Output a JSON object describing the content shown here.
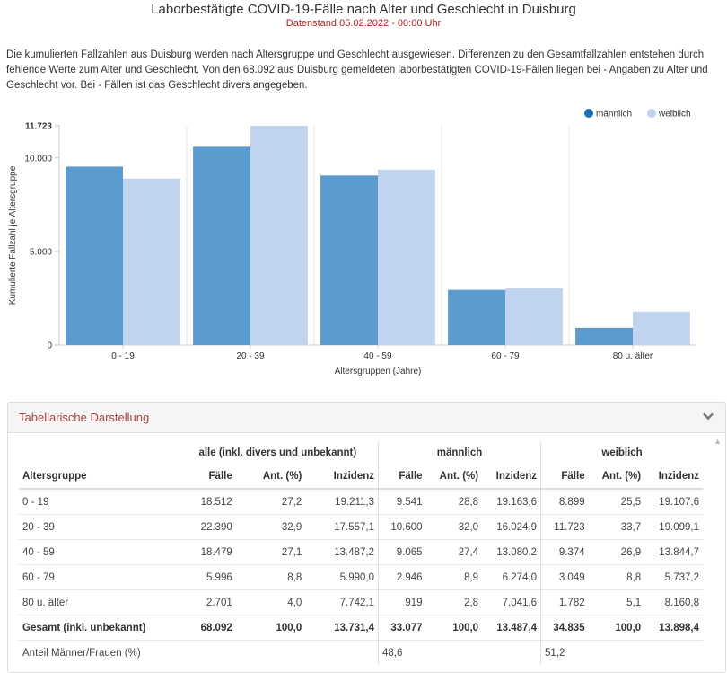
{
  "header": {
    "title": "Laborbestätigte COVID-19-Fälle nach Alter und Geschlecht in Duisburg",
    "subtitle": "Datenstand 05.02.2022 - 00:00 Uhr",
    "description": "Die kumulierten Fallzahlen aus Duisburg werden nach Altersgruppe und Geschlecht ausgewiesen. Differenzen zu den Gesamtfallzahlen entstehen durch fehlende Werte zum Alter und Geschlecht. Von den 68.092 aus Duisburg gemeldeten laborbestätigten COVID-19-Fällen liegen bei - Angaben zu Alter und Geschlecht vor. Bei - Fällen ist das Geschlecht divers angegeben."
  },
  "colors": {
    "male": "#5b9bd0",
    "female": "#c0d4ef",
    "legend_male": "#1f6fb4"
  },
  "chart_data": {
    "type": "bar",
    "categories": [
      "0 - 19",
      "20 - 39",
      "40 - 59",
      "60 - 79",
      "80 u. älter"
    ],
    "series": [
      {
        "name": "männlich",
        "values": [
          9541,
          10600,
          9065,
          2946,
          919
        ]
      },
      {
        "name": "weiblich",
        "values": [
          8899,
          11723,
          9374,
          3049,
          1782
        ]
      }
    ],
    "xlabel": "Altersgruppen (Jahre)",
    "ylabel": "Kumulierte Fallzahl je Altersgruppe",
    "ylim": [
      0,
      11723
    ],
    "yticks": [
      0,
      5000,
      10000,
      11723
    ],
    "ytick_labels": [
      "0",
      "5.000",
      "10.000",
      "11.723"
    ],
    "legend": "top-right",
    "grid": "vertical"
  },
  "table": {
    "panel_title": "Tabellarische Darstellung",
    "groups": [
      "alle (inkl. divers und unbekannt)",
      "männlich",
      "weiblich"
    ],
    "columns": [
      "Altersgruppe",
      "Fälle",
      "Ant. (%)",
      "Inzidenz",
      "Fälle",
      "Ant. (%)",
      "Inzidenz",
      "Fälle",
      "Ant. (%)",
      "Inzidenz"
    ],
    "rows": [
      [
        "0 - 19",
        "18.512",
        "27,2",
        "19.211,3",
        "9.541",
        "28,8",
        "19.163,6",
        "8.899",
        "25,5",
        "19.107,6"
      ],
      [
        "20 - 39",
        "22.390",
        "32,9",
        "17.557,1",
        "10.600",
        "32,0",
        "16.024,9",
        "11.723",
        "33,7",
        "19.099,1"
      ],
      [
        "40 - 59",
        "18.479",
        "27,1",
        "13.487,2",
        "9.065",
        "27,4",
        "13.080,2",
        "9.374",
        "26,9",
        "13.844,7"
      ],
      [
        "60 - 79",
        "5.996",
        "8,8",
        "5.990,0",
        "2.946",
        "8,9",
        "6.274,0",
        "3.049",
        "8,8",
        "5.737,2"
      ],
      [
        "80 u. älter",
        "2.701",
        "4,0",
        "7.742,1",
        "919",
        "2,8",
        "7.041,6",
        "1.782",
        "5,1",
        "8.160,8"
      ]
    ],
    "total": [
      "Gesamt (inkl. unbekannt)",
      "68.092",
      "100,0",
      "13.731,4",
      "33.077",
      "100,0",
      "13.487,4",
      "34.835",
      "100,0",
      "13.898,4"
    ],
    "share": {
      "label": "Anteil Männer/Frauen (%)",
      "male": "48,6",
      "female": "51,2"
    }
  }
}
